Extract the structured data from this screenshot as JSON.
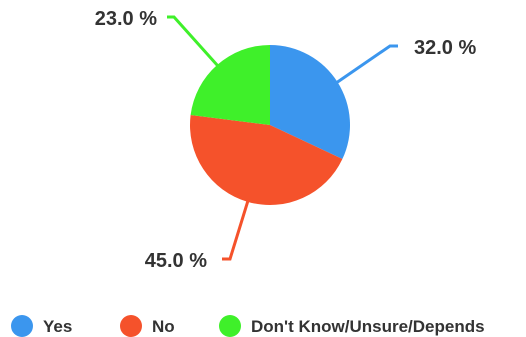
{
  "chart_data": {
    "type": "pie",
    "categories": [
      "Yes",
      "No",
      "Don't Know/Unsure/Depends"
    ],
    "values": [
      32.0,
      45.0,
      23.0
    ],
    "data_labels": [
      "32.0 %",
      "45.0 %",
      "23.0 %"
    ],
    "colors": [
      "#3b96ee",
      "#f5522b",
      "#3ff02a"
    ],
    "legend_position": "bottom",
    "start_angle": "top, clockwise"
  }
}
